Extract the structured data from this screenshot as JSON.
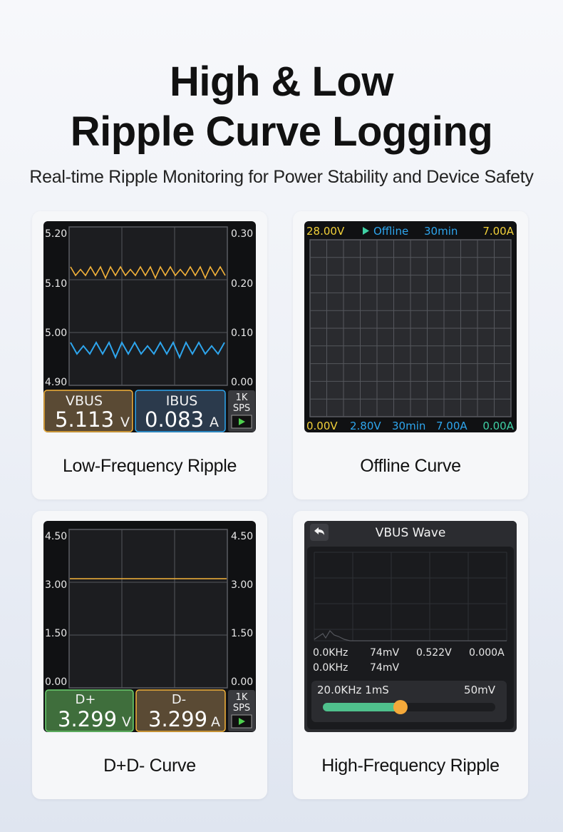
{
  "header": {
    "title_line1": "High & Low",
    "title_line2": "Ripple Curve Logging",
    "subtitle": "Real-time Ripple Monitoring for Power Stability and Device Safety"
  },
  "colors": {
    "orange": "#f5b33a",
    "blue": "#2ea6ee",
    "yellow": "#f2d13a",
    "green": "#6bd06e",
    "teal": "#3fd0a4"
  },
  "cards": {
    "low": {
      "caption": "Low-Frequency Ripple",
      "left_ticks": [
        "5.20",
        "5.10",
        "5.00",
        "4.90"
      ],
      "right_ticks": [
        "0.30",
        "0.20",
        "0.10",
        "0.00"
      ],
      "vbus_label": "VBUS",
      "vbus_value": "5.113",
      "vbus_unit": "V",
      "ibus_label": "IBUS",
      "ibus_value": "0.083",
      "ibus_unit": "A",
      "rate_line1": "1K",
      "rate_line2": "SPS"
    },
    "offline": {
      "caption": "Offline Curve",
      "top_left": "28.00V",
      "top_mode": "Offline",
      "top_time": "30min",
      "top_right": "7.00A",
      "bottom": [
        "0.00V",
        "2.80V",
        "30min",
        "7.00A",
        "0.00A"
      ]
    },
    "dpdm": {
      "caption": "D+D- Curve",
      "left_ticks": [
        "4.50",
        "3.00",
        "1.50",
        "0.00"
      ],
      "right_ticks": [
        "4.50",
        "3.00",
        "1.50",
        "0.00"
      ],
      "dp_label": "D+",
      "dp_value": "3.299",
      "dp_unit": "V",
      "dm_label": "D-",
      "dm_value": "3.299",
      "dm_unit": "A",
      "rate_line1": "1K",
      "rate_line2": "SPS"
    },
    "high": {
      "caption": "High-Frequency Ripple",
      "title": "VBUS Wave",
      "row1": [
        "0.0KHz",
        "74mV",
        "0.522V",
        "0.000A"
      ],
      "row2": [
        "0.0KHz",
        "74mV"
      ],
      "slider_left": "20.0KHz 1mS",
      "slider_right": "50mV",
      "slider_level": 0.45
    }
  }
}
